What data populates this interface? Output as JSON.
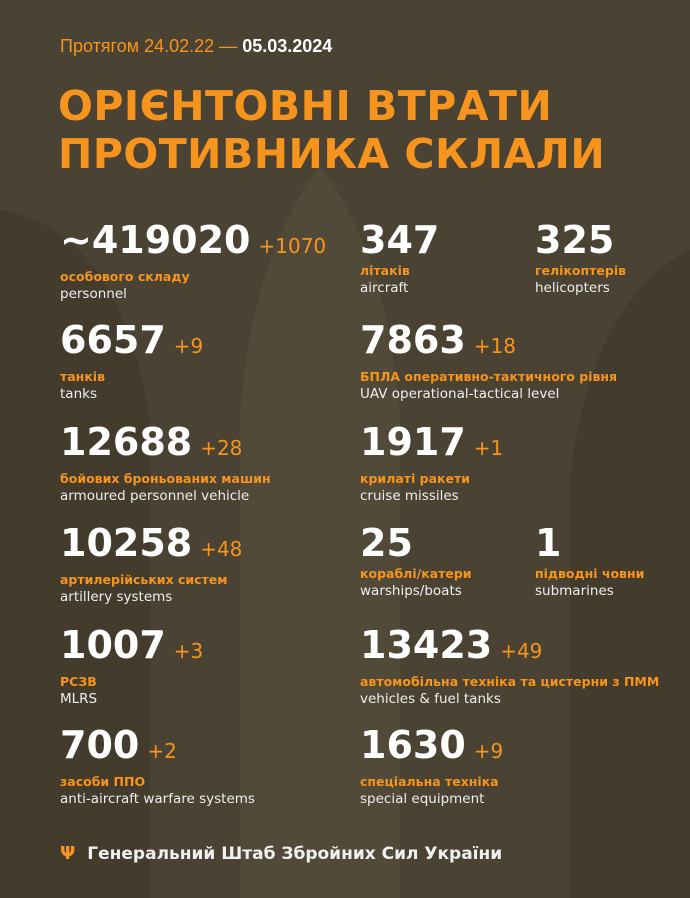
{
  "header": {
    "period_prefix": "Протягом 24.02.22 —",
    "period_end": "05.03.2024",
    "title_line1": "ОРІЄНТОВНІ ВТРАТИ",
    "title_line2": "ПРОТИВНИКА СКЛАЛИ"
  },
  "stats": [
    {
      "value": "~419020",
      "delta": "+1070",
      "ua": "особового складу",
      "en": "personnel"
    },
    {
      "value": "347",
      "delta": "",
      "ua": "літаків",
      "en": "aircraft"
    },
    {
      "value": "325",
      "delta": "",
      "ua": "гелікоптерів",
      "en": "helicopters"
    },
    {
      "value": "6657",
      "delta": "+9",
      "ua": "танків",
      "en": "tanks"
    },
    {
      "value": "7863",
      "delta": "+18",
      "ua": "БПЛА оперативно-тактичного рівня",
      "en": "UAV operational-tactical level"
    },
    {
      "value": "12688",
      "delta": "+28",
      "ua": "бойових броньованих машин",
      "en": "armoured personnel vehicle"
    },
    {
      "value": "1917",
      "delta": "+1",
      "ua": "крилаті ракети",
      "en": "cruise missiles"
    },
    {
      "value": "10258",
      "delta": "+48",
      "ua": "артилерійських систем",
      "en": "artillery systems"
    },
    {
      "value": "25",
      "delta": "",
      "ua": "кораблі/катери",
      "en": "warships/boats"
    },
    {
      "value": "1",
      "delta": "",
      "ua": "підводні човни",
      "en": "submarines"
    },
    {
      "value": "1007",
      "delta": "+3",
      "ua": "РСЗВ",
      "en": "MLRS"
    },
    {
      "value": "13423",
      "delta": "+49",
      "ua": "автомобільна техніка та цистерни з ПММ",
      "en": "vehicles & fuel tanks"
    },
    {
      "value": "700",
      "delta": "+2",
      "ua": "засоби ППО",
      "en": "anti-aircraft warfare systems"
    },
    {
      "value": "1630",
      "delta": "+9",
      "ua": "спеціальна техніка",
      "en": "special equipment"
    }
  ],
  "footer": {
    "icon": "tryzub-icon",
    "text": "Генеральний Штаб Збройних Сил України"
  },
  "colors": {
    "accent": "#f7941d",
    "background": "#4a4333"
  }
}
